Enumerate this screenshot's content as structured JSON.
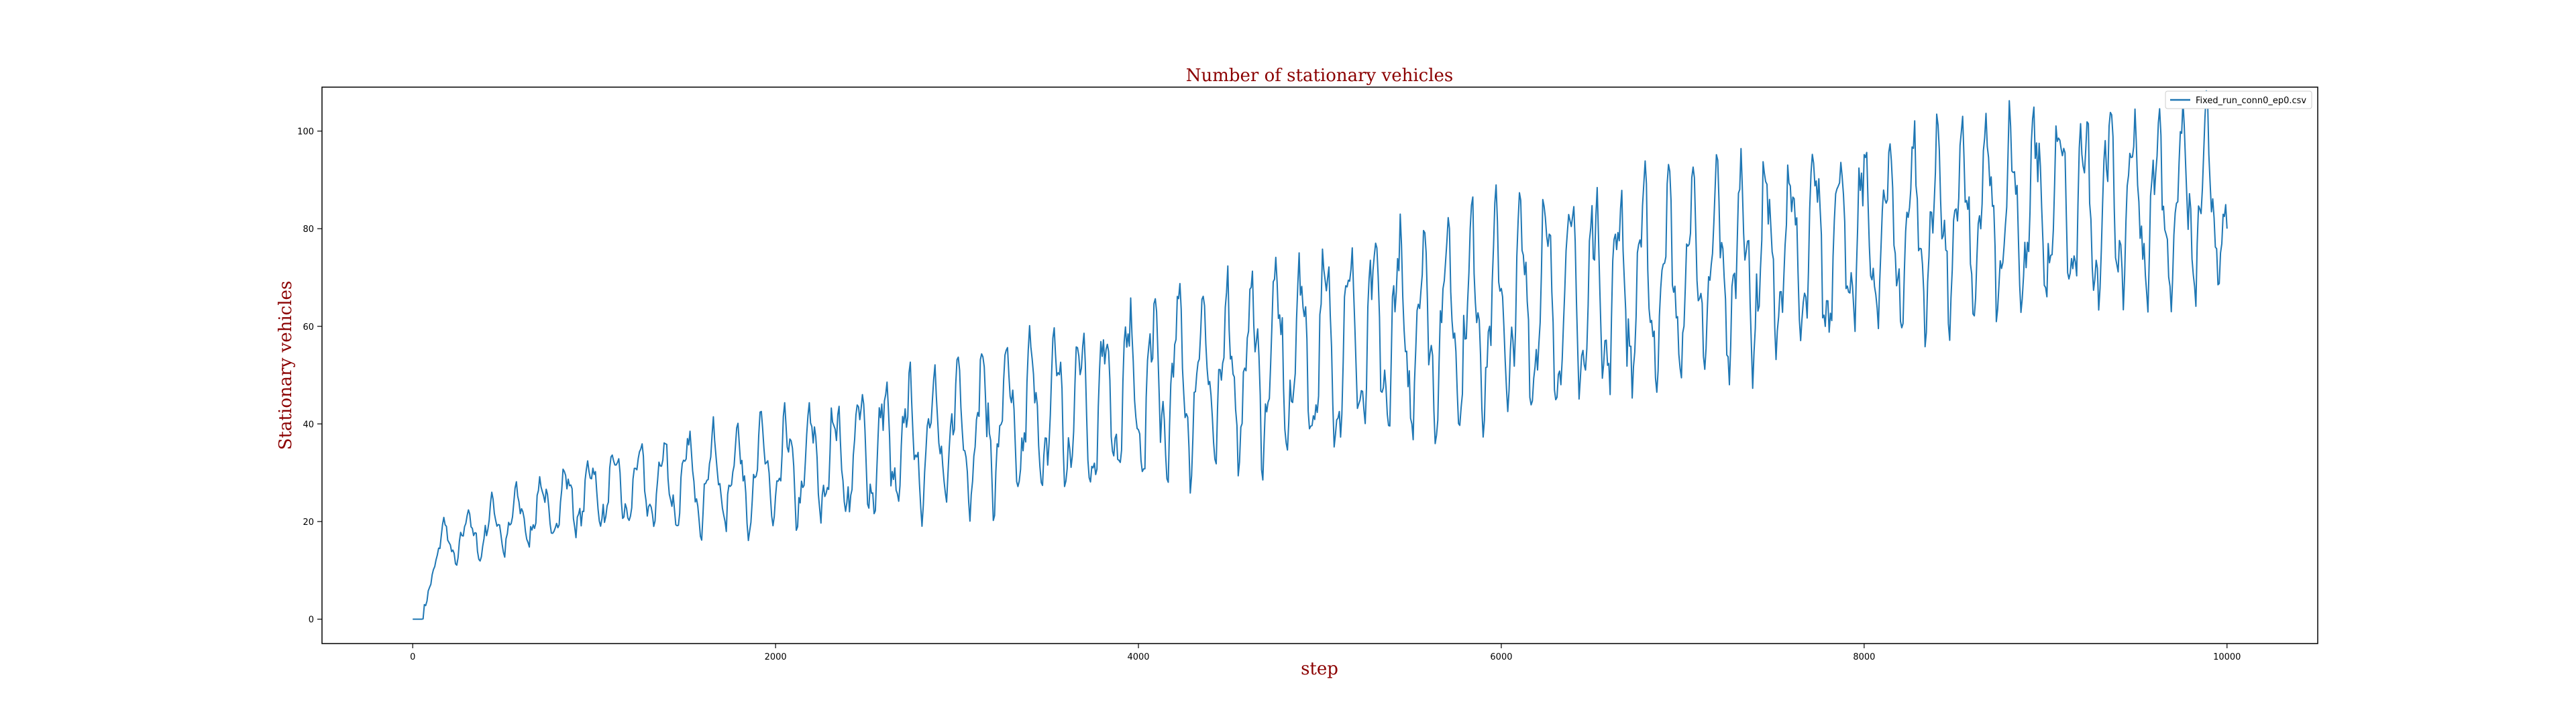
{
  "chart_data": {
    "type": "line",
    "title": "Number of stationary vehicles",
    "xlabel": "step",
    "ylabel": "Stationary vehicles",
    "xlim": [
      -500,
      10500
    ],
    "ylim": [
      -5,
      109
    ],
    "xticks": [
      0,
      2000,
      4000,
      6000,
      8000,
      10000
    ],
    "yticks": [
      0,
      20,
      40,
      60,
      80,
      100
    ],
    "grid": false,
    "legend_position": "top-right",
    "series": [
      {
        "name": "Fixed_run_conn0_ep0.csv",
        "color": "#1f77b4",
        "generator": {
          "steps": [
            0,
            10000
          ],
          "start_flat_until": 50,
          "ramp_end": [
            150,
            15
          ],
          "trend_points": [
            [
              150,
              15
            ],
            [
              1000,
              26
            ],
            [
              2000,
              30
            ],
            [
              3000,
              38
            ],
            [
              4000,
              46
            ],
            [
              5000,
              55
            ],
            [
              6000,
              63
            ],
            [
              7000,
              70
            ],
            [
              8000,
              78
            ],
            [
              9000,
              84
            ],
            [
              10000,
              85
            ]
          ],
          "amplitude_points": [
            [
              150,
              4
            ],
            [
              1000,
              6
            ],
            [
              2000,
              9
            ],
            [
              3000,
              12
            ],
            [
              4000,
              15
            ],
            [
              5000,
              16
            ],
            [
              6000,
              17
            ],
            [
              7000,
              17
            ],
            [
              8000,
              16
            ],
            [
              9000,
              16
            ],
            [
              10000,
              15
            ]
          ],
          "period": 135,
          "samples": 1400,
          "final_value": 80
        }
      }
    ]
  },
  "colors": {
    "title_text": "#8b0000",
    "axis_label_text": "#8b0000",
    "tick_text": "#000000",
    "line": "#1f77b4"
  }
}
